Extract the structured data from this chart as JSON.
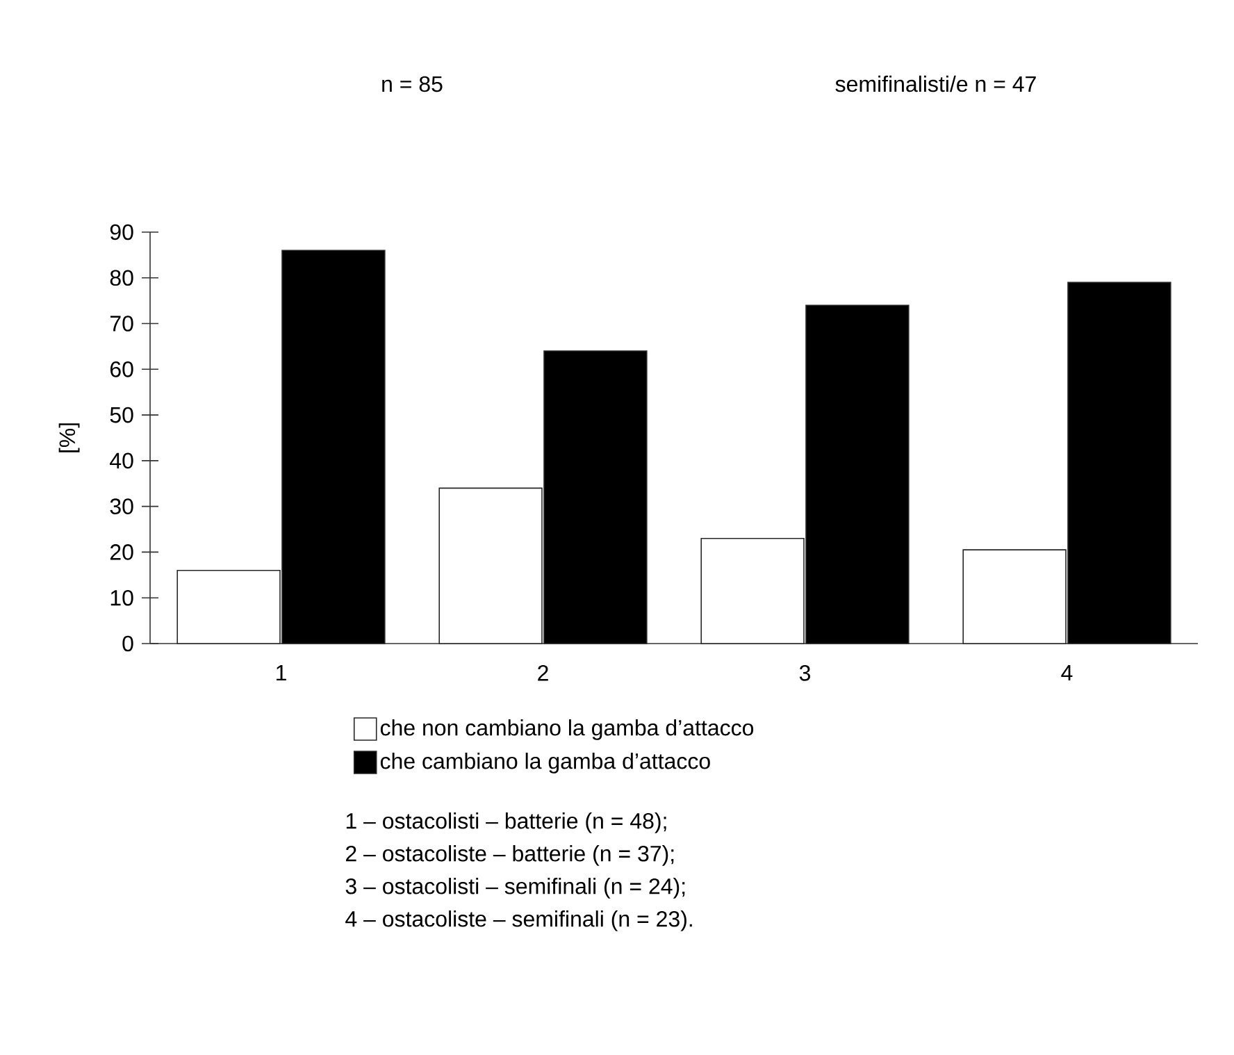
{
  "chart_data": {
    "type": "bar",
    "ylabel": "[%]",
    "categories": [
      "1",
      "2",
      "3",
      "4"
    ],
    "series": [
      {
        "name": "che non cambiano la gamba d’attacco",
        "color": "#ffffff",
        "values": [
          16,
          34,
          23,
          20.5
        ]
      },
      {
        "name": "che cambiano la gamba d’attacco",
        "color": "#000000",
        "values": [
          86,
          64,
          74,
          79
        ]
      }
    ],
    "ylim": [
      0,
      90
    ],
    "yticks": [
      0,
      10,
      20,
      30,
      40,
      50,
      60,
      70,
      80,
      90
    ],
    "grid": false,
    "legend": "bottom",
    "annotations": [
      "n = 85",
      "semifinalisti/e n = 47",
      "1 – ostacolisti – batterie (n = 48);",
      "2 – ostacoliste – batterie (n = 37);",
      "3 – ostacolisti – semifinali (n = 24);",
      "4 – ostacoliste – semifinali (n = 23)."
    ]
  }
}
